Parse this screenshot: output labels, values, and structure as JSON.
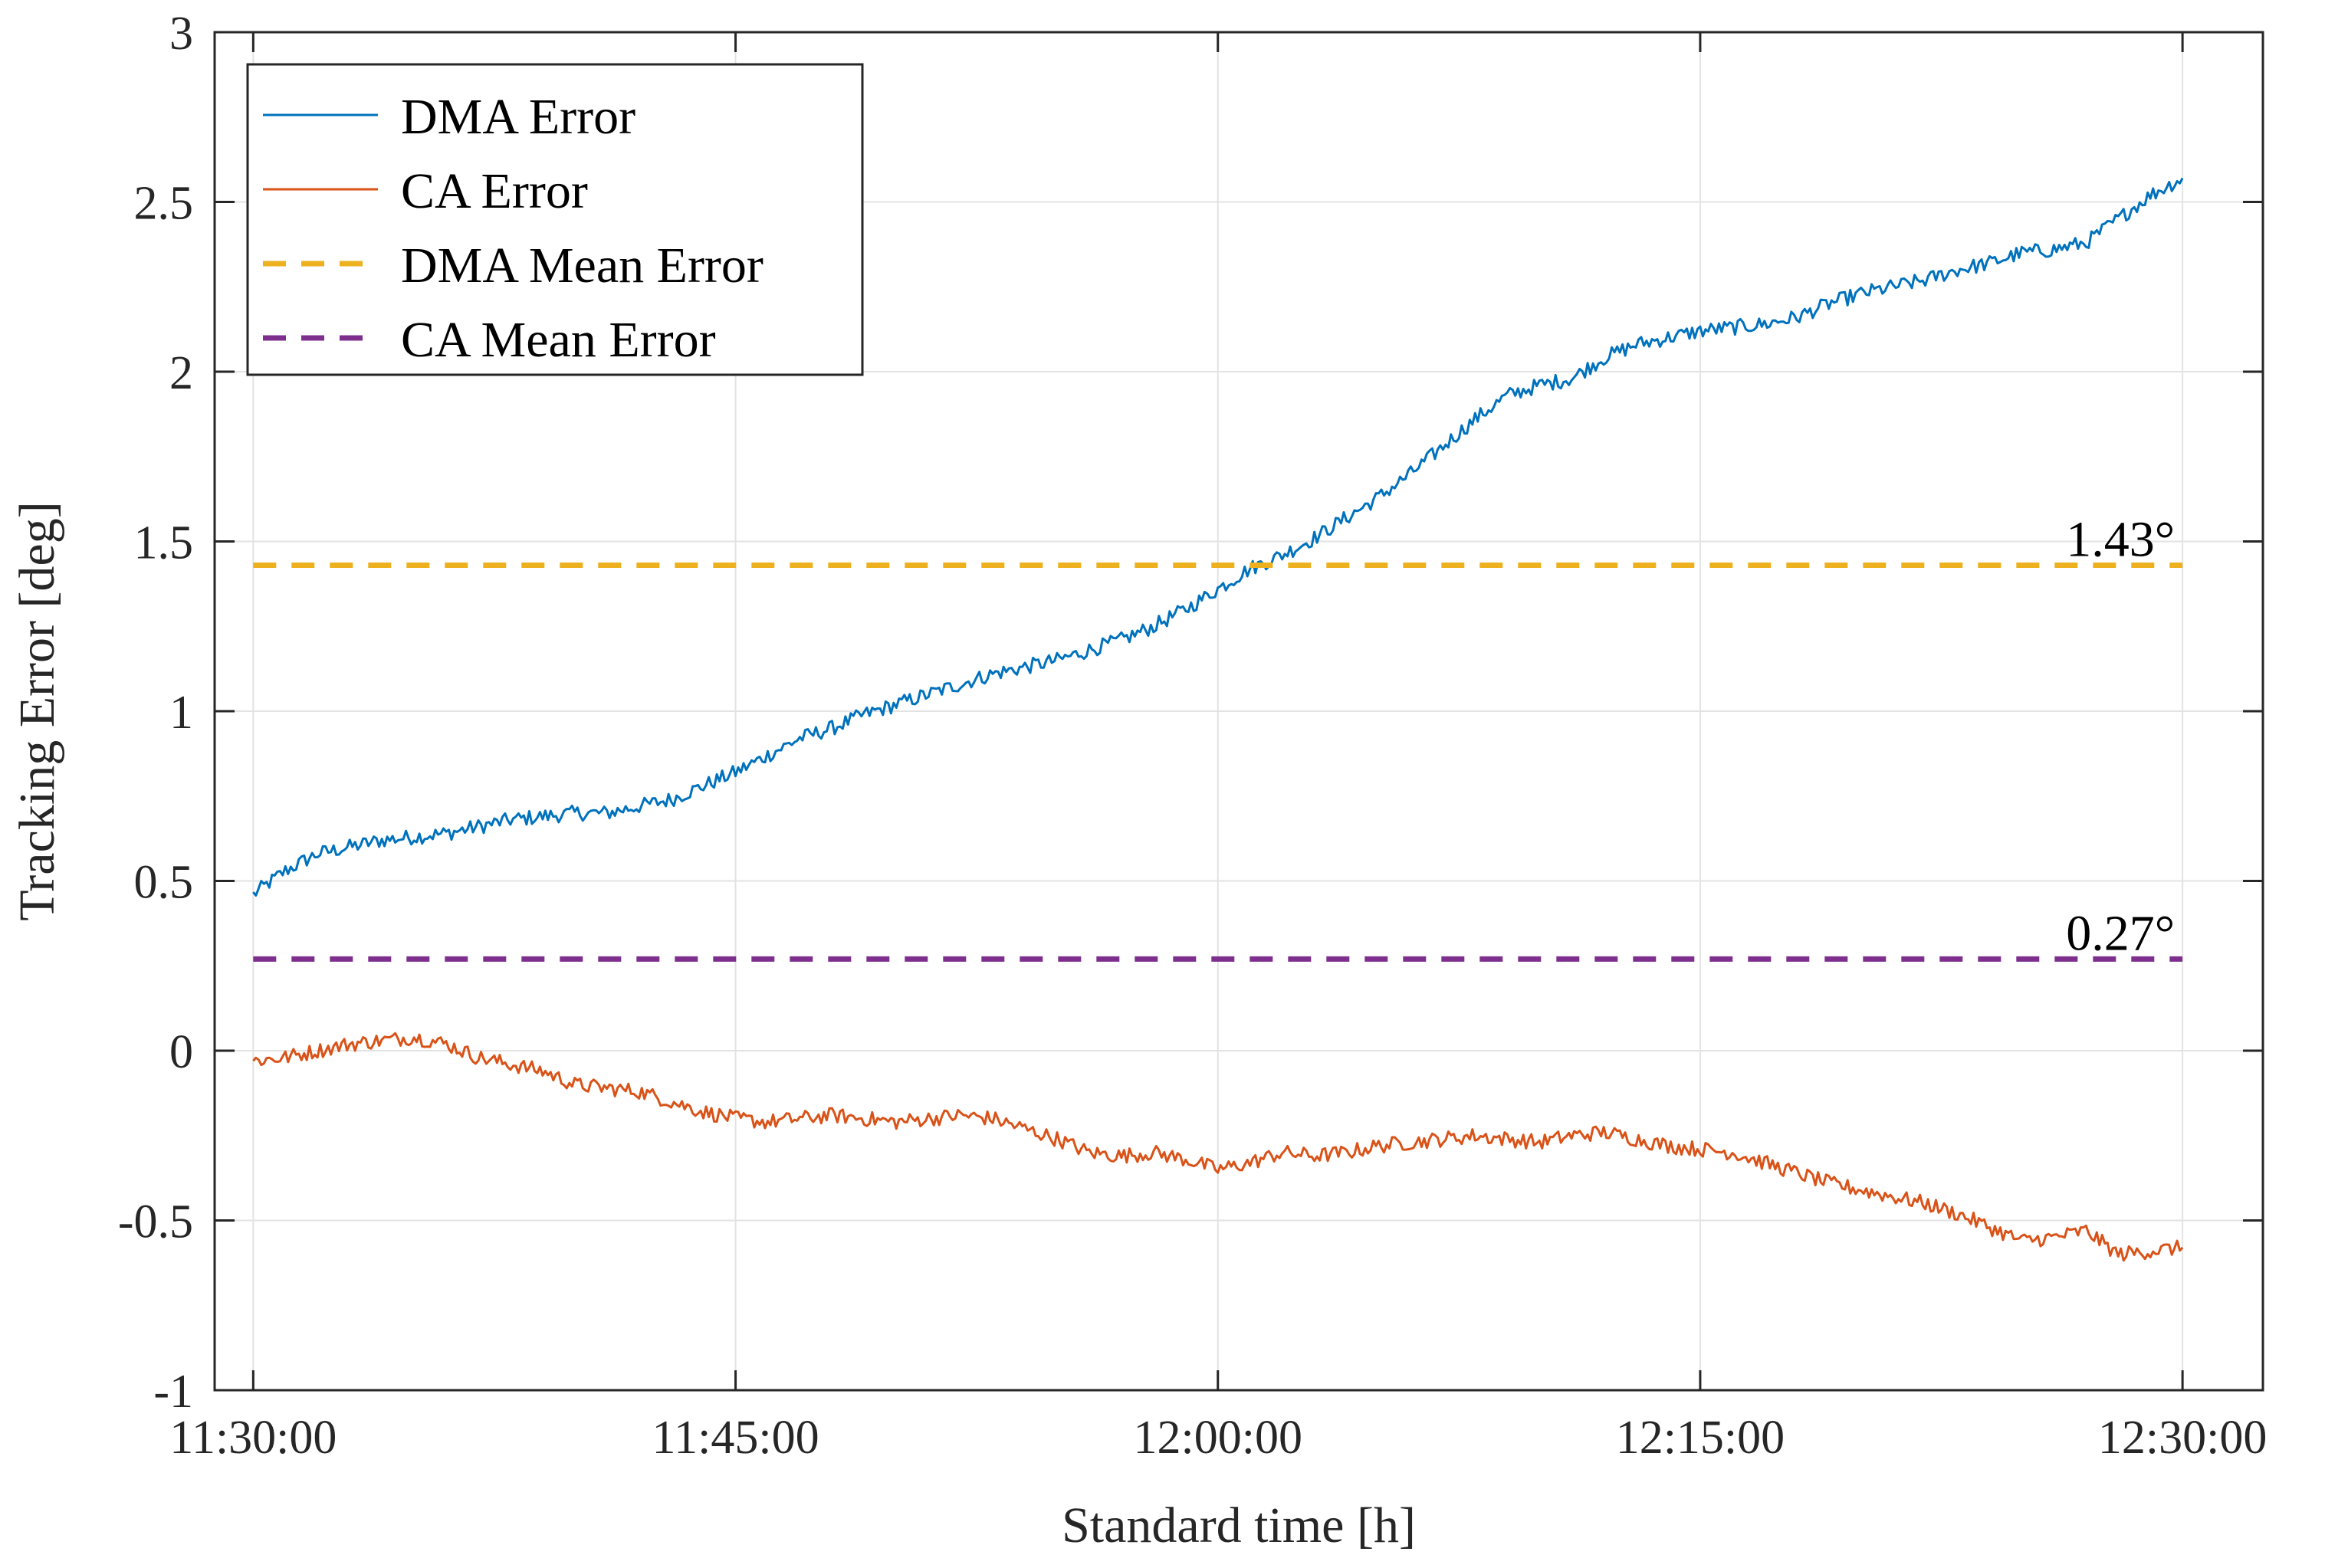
{
  "chart_data": {
    "type": "line",
    "title": "",
    "xlabel": "Standard time [h]",
    "ylabel": "Tracking Error [deg]",
    "x_unit": "minutes after 11:30:00",
    "xlim": [
      -1.2,
      62.5
    ],
    "ylim": [
      -1,
      3
    ],
    "x_ticks": [
      0,
      15,
      30,
      45,
      60
    ],
    "x_tick_labels": [
      "11:30:00",
      "11:45:00",
      "12:00:00",
      "12:15:00",
      "12:30:00"
    ],
    "y_ticks": [
      -1,
      -0.5,
      0,
      0.5,
      1,
      1.5,
      2,
      2.5,
      3
    ],
    "y_tick_labels": [
      "-1",
      "-0.5",
      "0",
      "0.5",
      "1",
      "1.5",
      "2",
      "2.5",
      "3"
    ],
    "grid": true,
    "legend_position": "top-left",
    "series": [
      {
        "name": "DMA Error",
        "color": "#0072BD",
        "style": "solid",
        "x": [
          0,
          1,
          2,
          3,
          4,
          5,
          6,
          7,
          8,
          9,
          10,
          11,
          12,
          13,
          14,
          15,
          16,
          17,
          18,
          19,
          20,
          21,
          22,
          23,
          24,
          25,
          26,
          27,
          28,
          29,
          30,
          31,
          32,
          33,
          34,
          35,
          36,
          37,
          38,
          39,
          40,
          41,
          42,
          43,
          44,
          45,
          46,
          47,
          48,
          49,
          50,
          51,
          52,
          53,
          54,
          55,
          56,
          57,
          58,
          59,
          60
        ],
        "y": [
          0.46,
          0.53,
          0.58,
          0.6,
          0.62,
          0.63,
          0.64,
          0.66,
          0.68,
          0.69,
          0.7,
          0.7,
          0.72,
          0.74,
          0.78,
          0.82,
          0.87,
          0.92,
          0.95,
          0.99,
          1.02,
          1.05,
          1.08,
          1.11,
          1.13,
          1.15,
          1.18,
          1.21,
          1.25,
          1.3,
          1.36,
          1.42,
          1.46,
          1.51,
          1.57,
          1.63,
          1.7,
          1.78,
          1.86,
          1.93,
          1.96,
          1.98,
          2.04,
          2.08,
          2.1,
          2.12,
          2.13,
          2.14,
          2.16,
          2.2,
          2.23,
          2.25,
          2.27,
          2.3,
          2.32,
          2.35,
          2.36,
          2.38,
          2.45,
          2.52,
          2.57
        ]
      },
      {
        "name": "CA Error",
        "color": "#D95319",
        "style": "solid",
        "x": [
          0,
          1,
          2,
          3,
          4,
          5,
          6,
          7,
          8,
          9,
          10,
          11,
          12,
          13,
          14,
          15,
          16,
          17,
          18,
          19,
          20,
          21,
          22,
          23,
          24,
          25,
          26,
          27,
          28,
          29,
          30,
          31,
          32,
          33,
          34,
          35,
          36,
          37,
          38,
          39,
          40,
          41,
          42,
          43,
          44,
          45,
          46,
          47,
          48,
          49,
          50,
          51,
          52,
          53,
          54,
          55,
          56,
          57,
          58,
          59,
          60
        ],
        "y": [
          -0.03,
          -0.02,
          0.0,
          0.02,
          0.03,
          0.04,
          0.02,
          -0.02,
          -0.04,
          -0.06,
          -0.1,
          -0.11,
          -0.12,
          -0.15,
          -0.18,
          -0.2,
          -0.21,
          -0.2,
          -0.19,
          -0.2,
          -0.21,
          -0.2,
          -0.19,
          -0.2,
          -0.23,
          -0.26,
          -0.3,
          -0.31,
          -0.3,
          -0.32,
          -0.35,
          -0.33,
          -0.3,
          -0.31,
          -0.3,
          -0.28,
          -0.27,
          -0.26,
          -0.25,
          -0.26,
          -0.27,
          -0.25,
          -0.24,
          -0.26,
          -0.28,
          -0.29,
          -0.3,
          -0.33,
          -0.36,
          -0.39,
          -0.41,
          -0.43,
          -0.45,
          -0.48,
          -0.52,
          -0.56,
          -0.55,
          -0.53,
          -0.6,
          -0.59,
          -0.58
        ]
      },
      {
        "name": "DMA Mean Error",
        "color": "#EDB120",
        "style": "dashed",
        "x": [
          0,
          60
        ],
        "y": [
          1.43,
          1.43
        ]
      },
      {
        "name": "CA Mean Error",
        "color": "#7E2F8E",
        "style": "dashed",
        "x": [
          0,
          60
        ],
        "y": [
          0.27,
          0.27
        ]
      }
    ],
    "annotations": [
      {
        "text": "1.43°",
        "x": 60,
        "y": 1.43
      },
      {
        "text": "0.27°",
        "x": 60,
        "y": 0.27
      }
    ]
  }
}
